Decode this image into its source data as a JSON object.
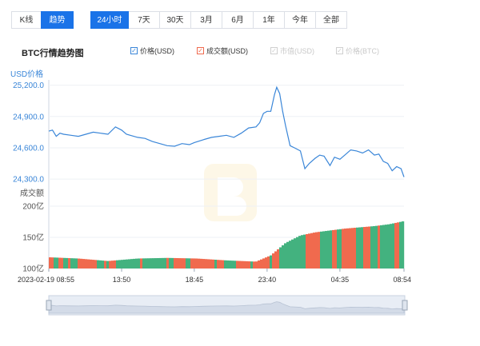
{
  "view_tabs": [
    {
      "label": "K线",
      "active": false
    },
    {
      "label": "趋势",
      "active": true
    }
  ],
  "range_tabs": [
    {
      "label": "24小时",
      "active": true
    },
    {
      "label": "7天",
      "active": false
    },
    {
      "label": "30天",
      "active": false
    },
    {
      "label": "3月",
      "active": false
    },
    {
      "label": "6月",
      "active": false
    },
    {
      "label": "1年",
      "active": false
    },
    {
      "label": "今年",
      "active": false
    },
    {
      "label": "全部",
      "active": false
    }
  ],
  "chart_title": "BTC行情趋势图",
  "legend": [
    {
      "label": "价格(USD)",
      "checked": true,
      "color": "#3a86d8"
    },
    {
      "label": "成交额(USD)",
      "checked": true,
      "color": "#f06a4e"
    },
    {
      "label": "市值(USD)",
      "checked": false,
      "color": "#c8c8c8"
    },
    {
      "label": "价格(BTC)",
      "checked": false,
      "color": "#c8c8c8"
    }
  ],
  "colors": {
    "price_line": "#3a86d8",
    "volume_up": "#f06a4e",
    "volume_down": "#43b27f",
    "accent": "#1a73e8"
  },
  "chart_data": [
    {
      "type": "line",
      "name": "价格(USD)",
      "ylabel": "USD价格",
      "yticks": [
        "25,200.0",
        "24,900.0",
        "24,600.0",
        "24,300.0"
      ],
      "ylim": [
        24255,
        25220
      ],
      "xticks": [
        "2023-02-19 08:55",
        "13:50",
        "18:45",
        "23:40",
        "04:35",
        "08:54"
      ],
      "x_hours": [
        0,
        4.92,
        9.83,
        14.75,
        19.67,
        24
      ],
      "x": [
        0,
        0.25,
        0.5,
        0.75,
        1,
        1.5,
        2,
        2.5,
        3,
        3.5,
        4,
        4.5,
        4.92,
        5.25,
        5.5,
        6,
        6.5,
        7,
        7.5,
        8,
        8.5,
        9,
        9.5,
        9.83,
        10.5,
        11,
        11.5,
        12,
        12.5,
        13,
        13.5,
        14,
        14.25,
        14.5,
        14.75,
        15,
        15.25,
        15.4,
        15.6,
        15.8,
        16,
        16.3,
        16.6,
        17,
        17.3,
        17.6,
        18,
        18.3,
        18.6,
        19,
        19.3,
        19.67,
        20,
        20.4,
        20.8,
        21.2,
        21.6,
        22,
        22.3,
        22.6,
        22.9,
        23.2,
        23.5,
        23.8,
        24
      ],
      "y": [
        24760,
        24770,
        24710,
        24740,
        24730,
        24720,
        24710,
        24730,
        24750,
        24740,
        24730,
        24800,
        24770,
        24730,
        24720,
        24700,
        24690,
        24660,
        24640,
        24620,
        24615,
        24640,
        24630,
        24650,
        24680,
        24700,
        24710,
        24720,
        24700,
        24740,
        24790,
        24800,
        24840,
        24930,
        24950,
        24950,
        25110,
        25180,
        25120,
        24950,
        24810,
        24620,
        24600,
        24570,
        24400,
        24450,
        24500,
        24530,
        24520,
        24430,
        24510,
        24490,
        24530,
        24580,
        24570,
        24550,
        24580,
        24530,
        24540,
        24470,
        24450,
        24380,
        24420,
        24400,
        24320
      ]
    },
    {
      "type": "bar",
      "name": "成交额(USD)",
      "ylabel": "成交额",
      "yticks": [
        "200亿",
        "150亿",
        "100亿"
      ],
      "ylim": [
        100,
        200
      ],
      "x_range_hours": [
        0,
        24
      ],
      "volume_keypoints_hours": [
        0,
        2,
        4,
        6,
        8,
        10,
        12,
        14,
        15,
        16,
        17,
        18,
        19,
        20,
        21,
        22,
        23,
        24
      ],
      "volume_keypoints_values": [
        118,
        116,
        112,
        116,
        117,
        116,
        113,
        111,
        121,
        141,
        153,
        158,
        161,
        164,
        166,
        168,
        171,
        176
      ]
    }
  ]
}
